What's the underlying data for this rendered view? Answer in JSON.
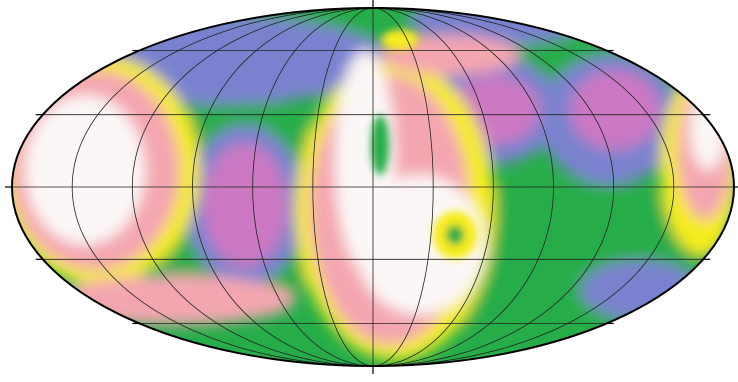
{
  "map": {
    "projection": "mollweide",
    "graticule": {
      "meridian_step_deg": 30,
      "parallel_step_deg": 30
    },
    "palette": {
      "white": "#fbf7f6",
      "pink": "#f4a6b0",
      "yellow": "#f6ec1b",
      "green": "#26ad4a",
      "blue": "#7a82cf",
      "magenta": "#cc78c3",
      "outline": "#000000",
      "grid": "#222222"
    },
    "regions": [
      {
        "id": "green-band-north",
        "color": "green"
      },
      {
        "id": "blue-cell-north-center",
        "color": "blue"
      },
      {
        "id": "blue-arc-northwest",
        "color": "blue"
      },
      {
        "id": "blue-cell-east",
        "color": "blue"
      },
      {
        "id": "green-band-south",
        "color": "green"
      },
      {
        "id": "white-blob-west",
        "color": "white"
      },
      {
        "id": "magenta-blob-west-center",
        "color": "magenta"
      },
      {
        "id": "white-ridge-central",
        "color": "white"
      },
      {
        "id": "white-blob-center-south",
        "color": "white"
      },
      {
        "id": "magenta-blob-northeast",
        "color": "magenta"
      },
      {
        "id": "magenta-blob-east",
        "color": "magenta"
      },
      {
        "id": "white-blob-far-east",
        "color": "white"
      },
      {
        "id": "pink-streaks-southwest",
        "color": "pink"
      }
    ]
  }
}
